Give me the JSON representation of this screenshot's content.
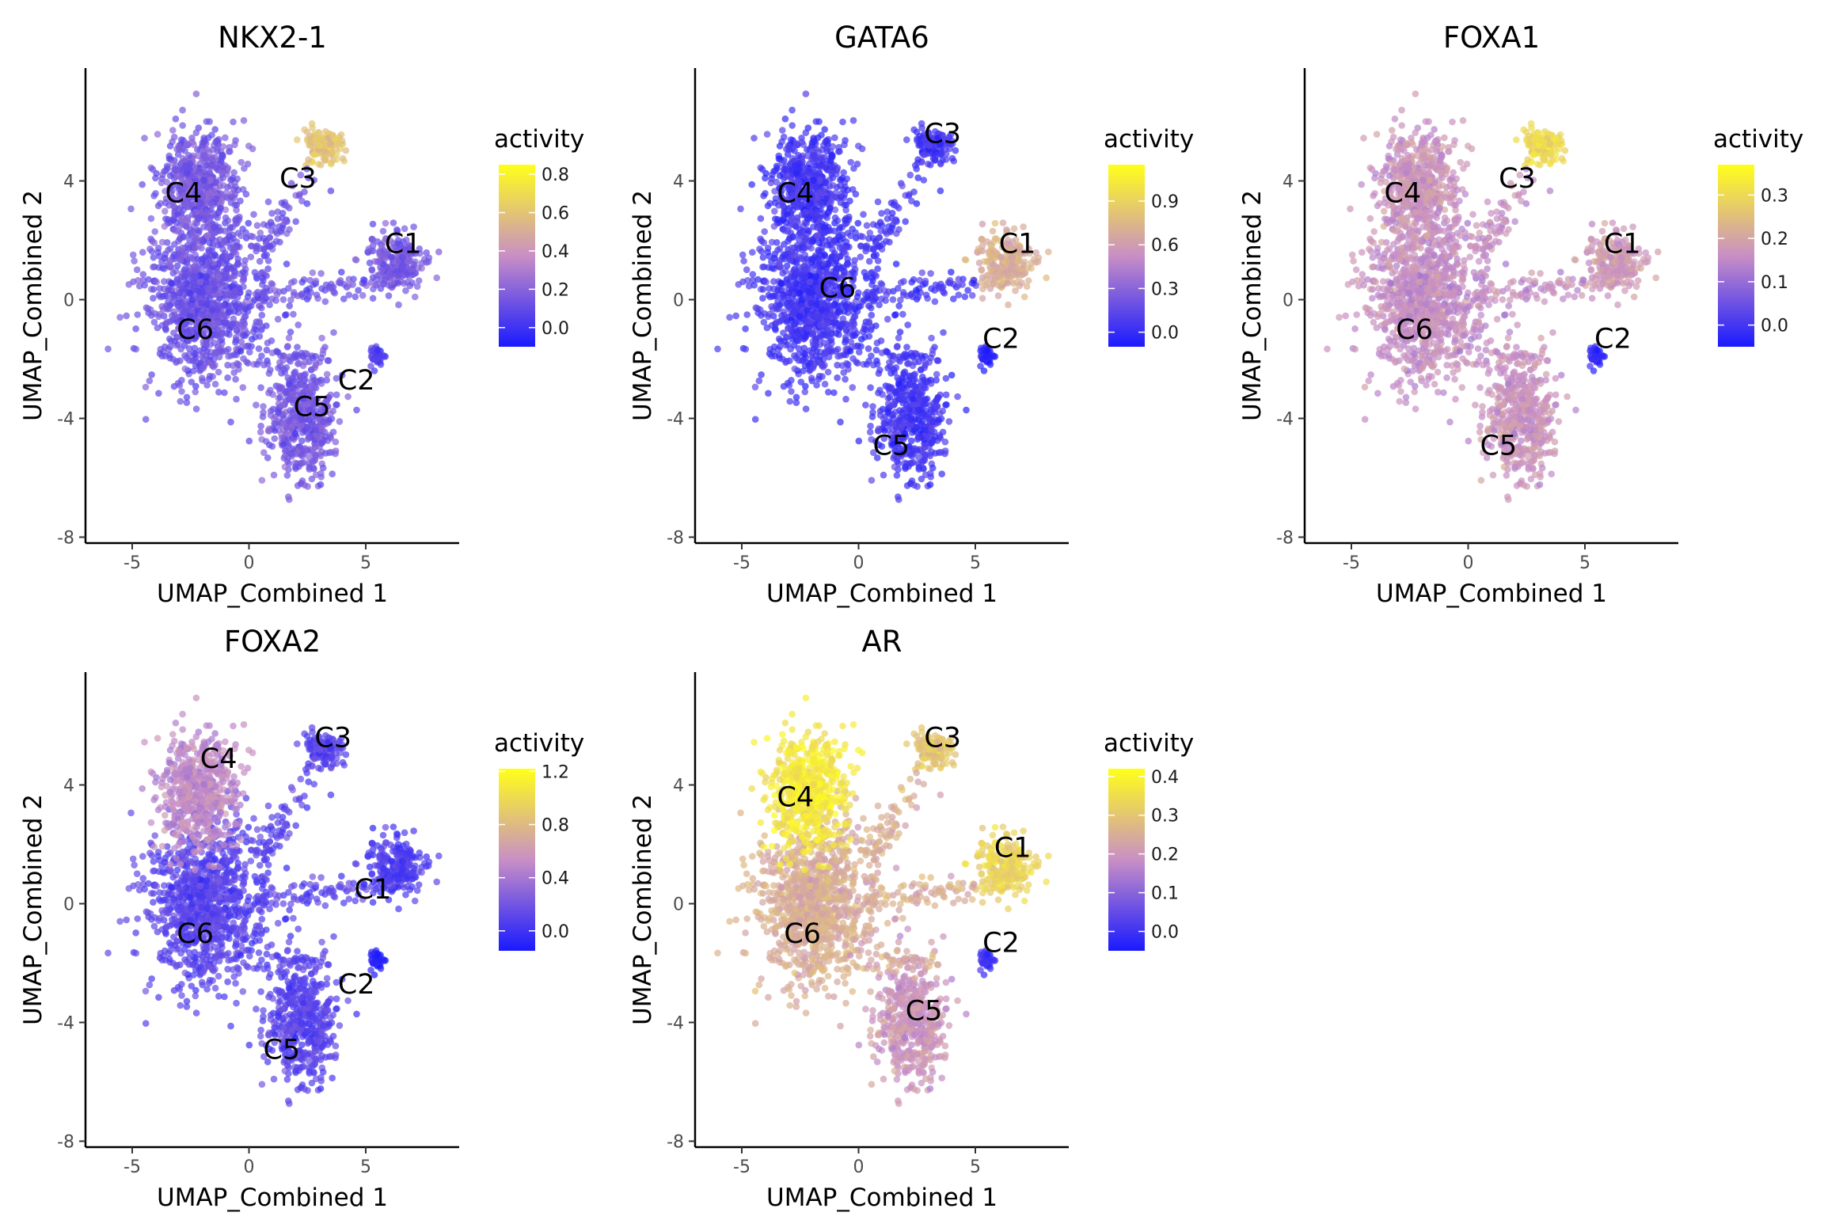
{
  "figure": {
    "x_axis_label": "UMAP_Combined 1",
    "y_axis_label": "UMAP_Combined 2",
    "legend_title": "activity",
    "x_ticks": [
      -5,
      0,
      5
    ],
    "y_ticks": [
      -8,
      -4,
      0,
      4
    ],
    "colors": {
      "low": "#1a1aff",
      "mid": "#c98fc5",
      "high": "#ffff1a"
    }
  },
  "clusters": [
    {
      "name": "C1",
      "center": [
        6.2,
        1.6
      ]
    },
    {
      "name": "C2",
      "center": [
        5.5,
        -2.0
      ]
    },
    {
      "name": "C3",
      "center": [
        3.2,
        5.2
      ]
    },
    {
      "name": "C4",
      "center": [
        -2.8,
        3.5
      ]
    },
    {
      "name": "C5",
      "center": [
        2.5,
        -5.3
      ]
    },
    {
      "name": "C6",
      "center": [
        -1.8,
        0.2
      ]
    }
  ],
  "chart_data": [
    {
      "type": "scatter",
      "title": "NKX2-1",
      "xlabel": "UMAP_Combined 1",
      "ylabel": "UMAP_Combined 2",
      "xlim": [
        -7,
        9
      ],
      "ylim": [
        -8.2,
        7.8
      ],
      "legend_ticks": [
        0.0,
        0.2,
        0.4,
        0.6,
        0.8
      ],
      "legend_tick_labels": [
        "0.0",
        "0.2",
        "0.4",
        "0.6",
        "0.8"
      ],
      "color_range": [
        -0.1,
        0.85
      ],
      "cluster_activity": {
        "C1": 0.15,
        "C2": 0.05,
        "C3": 0.6,
        "C4": 0.15,
        "C5": 0.15,
        "C6": 0.12
      },
      "cluster_labels": [
        {
          "text": "C1",
          "x": 6.6,
          "y": 1.9
        },
        {
          "text": "C2",
          "x": 4.6,
          "y": -2.7
        },
        {
          "text": "C3",
          "x": 2.1,
          "y": 4.1
        },
        {
          "text": "C4",
          "x": -2.8,
          "y": 3.6
        },
        {
          "text": "C5",
          "x": 2.7,
          "y": -3.6
        },
        {
          "text": "C6",
          "x": -2.3,
          "y": -1.0
        }
      ]
    },
    {
      "type": "scatter",
      "title": "GATA6",
      "xlabel": "UMAP_Combined 1",
      "ylabel": "UMAP_Combined 2",
      "xlim": [
        -7,
        9
      ],
      "ylim": [
        -8.2,
        7.8
      ],
      "legend_ticks": [
        0.0,
        0.3,
        0.6,
        0.9
      ],
      "legend_tick_labels": [
        "0.0",
        "0.3",
        "0.6",
        "0.9"
      ],
      "color_range": [
        -0.1,
        1.15
      ],
      "cluster_activity": {
        "C1": 0.7,
        "C2": -0.05,
        "C3": 0.05,
        "C4": 0.05,
        "C5": 0.05,
        "C6": 0.05
      },
      "cluster_labels": [
        {
          "text": "C1",
          "x": 6.8,
          "y": 1.9
        },
        {
          "text": "C2",
          "x": 6.1,
          "y": -1.3
        },
        {
          "text": "C3",
          "x": 3.6,
          "y": 5.6
        },
        {
          "text": "C4",
          "x": -2.7,
          "y": 3.6
        },
        {
          "text": "C5",
          "x": 1.4,
          "y": -4.9
        },
        {
          "text": "C6",
          "x": -0.9,
          "y": 0.4
        }
      ]
    },
    {
      "type": "scatter",
      "title": "FOXA1",
      "xlabel": "UMAP_Combined 1",
      "ylabel": "UMAP_Combined 2",
      "xlim": [
        -7,
        9
      ],
      "ylim": [
        -8.2,
        7.8
      ],
      "legend_ticks": [
        0.0,
        0.1,
        0.2,
        0.3
      ],
      "legend_tick_labels": [
        "0.0",
        "0.1",
        "0.2",
        "0.3"
      ],
      "color_range": [
        -0.05,
        0.37
      ],
      "cluster_activity": {
        "C1": 0.18,
        "C2": -0.02,
        "C3": 0.3,
        "C4": 0.17,
        "C5": 0.17,
        "C6": 0.16
      },
      "cluster_labels": [
        {
          "text": "C1",
          "x": 6.6,
          "y": 1.9
        },
        {
          "text": "C2",
          "x": 6.2,
          "y": -1.3
        },
        {
          "text": "C3",
          "x": 2.1,
          "y": 4.1
        },
        {
          "text": "C4",
          "x": -2.8,
          "y": 3.6
        },
        {
          "text": "C5",
          "x": 1.3,
          "y": -4.9
        },
        {
          "text": "C6",
          "x": -2.3,
          "y": -1.0
        }
      ]
    },
    {
      "type": "scatter",
      "title": "FOXA2",
      "xlabel": "UMAP_Combined 1",
      "ylabel": "UMAP_Combined 2",
      "xlim": [
        -7,
        9
      ],
      "ylim": [
        -8.2,
        7.8
      ],
      "legend_ticks": [
        0.0,
        0.4,
        0.8,
        1.2
      ],
      "legend_tick_labels": [
        "0.0",
        "0.4",
        "0.8",
        "1.2"
      ],
      "color_range": [
        -0.15,
        1.22
      ],
      "cluster_activity": {
        "C1": 0.05,
        "C2": -0.1,
        "C3": 0.1,
        "C4": 0.5,
        "C5": 0.1,
        "C6": 0.1
      },
      "cluster_labels": [
        {
          "text": "C1",
          "x": 5.3,
          "y": 0.5
        },
        {
          "text": "C2",
          "x": 4.6,
          "y": -2.7
        },
        {
          "text": "C3",
          "x": 3.6,
          "y": 5.6
        },
        {
          "text": "C4",
          "x": -1.3,
          "y": 4.9
        },
        {
          "text": "C5",
          "x": 1.4,
          "y": -4.9
        },
        {
          "text": "C6",
          "x": -2.3,
          "y": -1.0
        }
      ]
    },
    {
      "type": "scatter",
      "title": "AR",
      "xlabel": "UMAP_Combined 1",
      "ylabel": "UMAP_Combined 2",
      "xlim": [
        -7,
        9
      ],
      "ylim": [
        -8.2,
        7.8
      ],
      "legend_ticks": [
        0.0,
        0.1,
        0.2,
        0.3,
        0.4
      ],
      "legend_tick_labels": [
        "0.0",
        "0.1",
        "0.2",
        "0.3",
        "0.4"
      ],
      "color_range": [
        -0.05,
        0.42
      ],
      "cluster_activity": {
        "C1": 0.33,
        "C2": 0.0,
        "C3": 0.3,
        "C4": 0.37,
        "C5": 0.2,
        "C6": 0.25
      },
      "cluster_labels": [
        {
          "text": "C1",
          "x": 6.6,
          "y": 1.9
        },
        {
          "text": "C2",
          "x": 6.1,
          "y": -1.3
        },
        {
          "text": "C3",
          "x": 3.6,
          "y": 5.6
        },
        {
          "text": "C4",
          "x": -2.7,
          "y": 3.6
        },
        {
          "text": "C5",
          "x": 2.8,
          "y": -3.6
        },
        {
          "text": "C6",
          "x": -2.4,
          "y": -1.0
        }
      ]
    }
  ]
}
